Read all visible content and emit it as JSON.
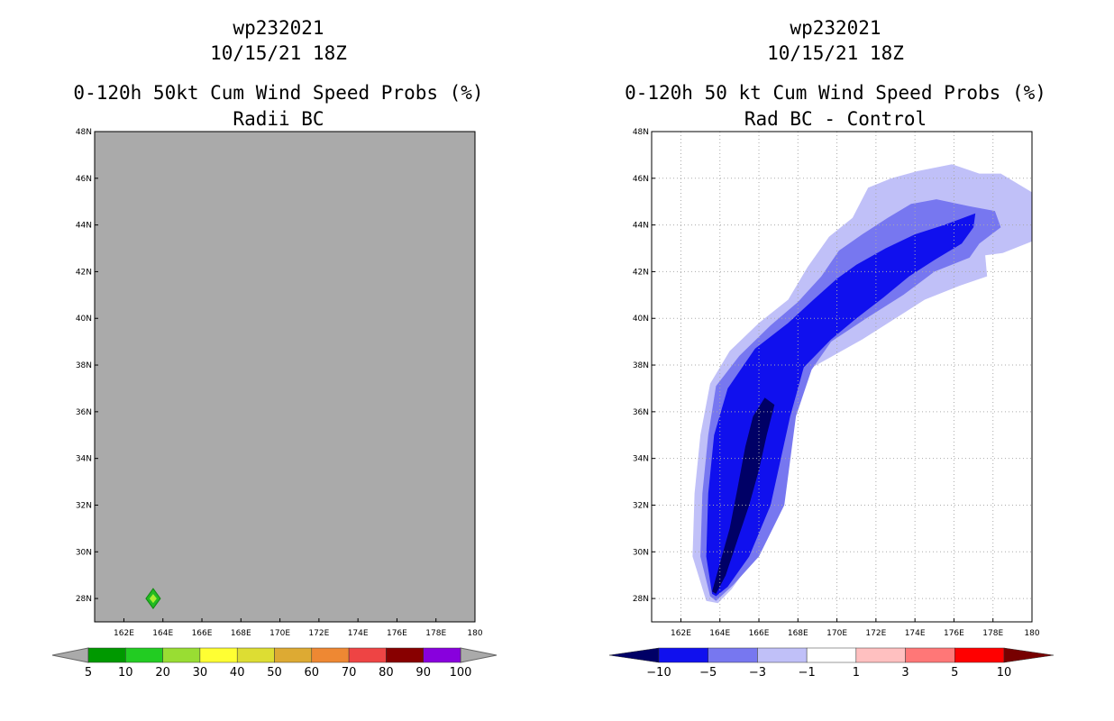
{
  "left_panel": {
    "storm_id": "wp232021",
    "datetime": "10/15/21 18Z",
    "title": "0-120h 50kt Cum Wind Speed Probs (%)",
    "subtitle": "Radii BC"
  },
  "right_panel": {
    "storm_id": "wp232021",
    "datetime": "10/15/21 18Z",
    "title": "0-120h 50 kt Cum Wind Speed Probs (%)",
    "subtitle": "Rad BC - Control"
  },
  "colors": {
    "background_fill": "#aaaaaa",
    "marker_outer": "#22bb22",
    "marker_inner": "#aaee33"
  },
  "chart_data": [
    {
      "type": "heatmap",
      "title": "0-120h 50kt Cum Wind Speed Probs (%)",
      "xlabel": "",
      "ylabel": "",
      "xlim": [
        160.5,
        180
      ],
      "ylim": [
        27,
        48
      ],
      "x_ticks": [
        "162E",
        "164E",
        "166E",
        "168E",
        "170E",
        "172E",
        "174E",
        "176E",
        "178E",
        "180"
      ],
      "y_ticks": [
        "28N",
        "30N",
        "32N",
        "34N",
        "36N",
        "38N",
        "40N",
        "42N",
        "44N",
        "46N",
        "48N"
      ],
      "grid": false,
      "points": [
        {
          "lon": 163.5,
          "lat": 28.0,
          "category": "5-10"
        }
      ],
      "colorbar": {
        "labels": [
          "5",
          "10",
          "20",
          "30",
          "40",
          "50",
          "60",
          "70",
          "80",
          "90",
          "100"
        ],
        "colors": [
          "#009900",
          "#22cc22",
          "#99dd33",
          "#ffff33",
          "#dddd33",
          "#ddaa33",
          "#ee8833",
          "#ee4444",
          "#880000",
          "#8800dd"
        ]
      }
    },
    {
      "type": "heatmap",
      "title": "0-120h 50 kt Cum Wind Speed Probs (%)",
      "xlabel": "",
      "ylabel": "",
      "xlim": [
        160.5,
        180
      ],
      "ylim": [
        27,
        48
      ],
      "x_ticks": [
        "162E",
        "164E",
        "166E",
        "168E",
        "170E",
        "172E",
        "174E",
        "176E",
        "178E",
        "180"
      ],
      "y_ticks": [
        "28N",
        "30N",
        "32N",
        "34N",
        "36N",
        "38N",
        "40N",
        "42N",
        "44N",
        "46N",
        "48N"
      ],
      "grid": true,
      "contours": [
        {
          "level": "-1 to -3",
          "color": "#c0c0f8",
          "polygon": [
            [
              163.3,
              27.9
            ],
            [
              162.6,
              29.8
            ],
            [
              162.7,
              32.5
            ],
            [
              163.0,
              35.0
            ],
            [
              163.5,
              37.2
            ],
            [
              164.5,
              38.6
            ],
            [
              166.0,
              39.8
            ],
            [
              167.5,
              40.8
            ],
            [
              168.5,
              42.2
            ],
            [
              169.6,
              43.5
            ],
            [
              170.8,
              44.3
            ],
            [
              171.6,
              45.6
            ],
            [
              172.8,
              46.0
            ],
            [
              174.1,
              46.3
            ],
            [
              175.9,
              46.6
            ],
            [
              177.3,
              46.2
            ],
            [
              178.4,
              46.2
            ],
            [
              179.0,
              45.9
            ],
            [
              180.0,
              45.4
            ],
            [
              180.0,
              43.3
            ],
            [
              178.5,
              42.8
            ],
            [
              177.6,
              42.7
            ],
            [
              177.7,
              41.8
            ],
            [
              176.3,
              41.4
            ],
            [
              174.5,
              40.8
            ],
            [
              173.0,
              40.0
            ],
            [
              171.3,
              39.1
            ],
            [
              169.8,
              38.4
            ],
            [
              168.1,
              37.6
            ],
            [
              167.2,
              35.5
            ],
            [
              167.0,
              32.0
            ],
            [
              165.8,
              29.8
            ],
            [
              164.6,
              28.4
            ],
            [
              163.9,
              27.8
            ]
          ]
        },
        {
          "level": "-3 to -5",
          "color": "#7777f0",
          "polygon": [
            [
              163.5,
              28.1
            ],
            [
              163.0,
              29.8
            ],
            [
              163.1,
              32.5
            ],
            [
              163.4,
              35.0
            ],
            [
              163.8,
              37.1
            ],
            [
              165.0,
              38.4
            ],
            [
              166.6,
              39.7
            ],
            [
              168.0,
              40.7
            ],
            [
              169.2,
              41.8
            ],
            [
              170.1,
              42.9
            ],
            [
              171.3,
              43.6
            ],
            [
              172.6,
              44.3
            ],
            [
              173.8,
              44.9
            ],
            [
              175.1,
              45.1
            ],
            [
              176.8,
              44.8
            ],
            [
              178.1,
              44.6
            ],
            [
              178.4,
              43.9
            ],
            [
              177.3,
              43.2
            ],
            [
              176.8,
              42.6
            ],
            [
              175.0,
              42.0
            ],
            [
              173.4,
              41.0
            ],
            [
              171.5,
              40.0
            ],
            [
              169.7,
              39.0
            ],
            [
              168.7,
              37.8
            ],
            [
              167.9,
              35.8
            ],
            [
              167.3,
              32.0
            ],
            [
              166.0,
              29.8
            ],
            [
              164.7,
              28.6
            ],
            [
              163.8,
              27.9
            ]
          ]
        },
        {
          "level": "-5 to -10",
          "color": "#1010ee",
          "polygon": [
            [
              163.6,
              28.2
            ],
            [
              163.3,
              29.8
            ],
            [
              163.4,
              32.5
            ],
            [
              163.7,
              35.0
            ],
            [
              164.4,
              37.0
            ],
            [
              165.8,
              38.7
            ],
            [
              167.5,
              39.8
            ],
            [
              168.8,
              40.8
            ],
            [
              170.0,
              41.7
            ],
            [
              171.0,
              42.3
            ],
            [
              172.5,
              43.0
            ],
            [
              174.0,
              43.6
            ],
            [
              175.5,
              44.0
            ],
            [
              177.1,
              44.5
            ],
            [
              177.0,
              43.9
            ],
            [
              176.4,
              43.2
            ],
            [
              175.0,
              42.5
            ],
            [
              173.7,
              41.8
            ],
            [
              172.4,
              40.9
            ],
            [
              171.0,
              40.0
            ],
            [
              169.7,
              39.1
            ],
            [
              168.3,
              37.9
            ],
            [
              167.6,
              35.8
            ],
            [
              166.6,
              32.0
            ],
            [
              165.5,
              29.8
            ],
            [
              164.4,
              28.5
            ],
            [
              163.8,
              28.1
            ]
          ]
        },
        {
          "level": "< -10",
          "color": "#000066",
          "polygon": [
            [
              163.6,
              28.3
            ],
            [
              164.0,
              29.5
            ],
            [
              164.5,
              31.0
            ],
            [
              164.9,
              32.7
            ],
            [
              165.3,
              34.5
            ],
            [
              165.7,
              35.8
            ],
            [
              166.3,
              36.6
            ],
            [
              166.8,
              36.3
            ],
            [
              166.4,
              35.0
            ],
            [
              166.0,
              33.5
            ],
            [
              165.5,
              32.0
            ],
            [
              164.9,
              30.5
            ],
            [
              164.3,
              29.0
            ],
            [
              163.8,
              28.2
            ]
          ]
        }
      ],
      "colorbar": {
        "labels": [
          "-10",
          "-5",
          "-3",
          "-1",
          "1",
          "3",
          "5",
          "10"
        ],
        "colors": [
          "#000066",
          "#1010ee",
          "#7777f0",
          "#c0c0f8",
          "#ffffff",
          "#ffc0c0",
          "#ff7777",
          "#ff0000",
          "#770000"
        ]
      }
    }
  ]
}
